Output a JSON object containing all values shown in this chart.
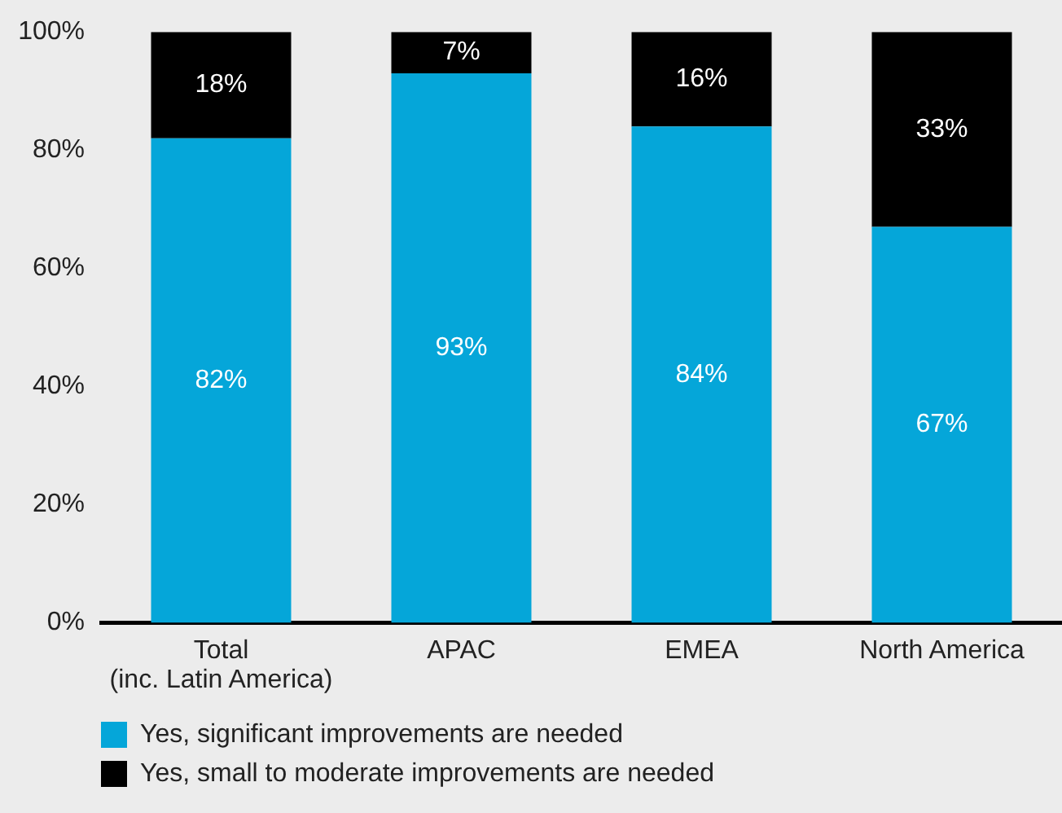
{
  "chart_data": {
    "type": "bar",
    "stacked": true,
    "categories": [
      "Total (inc. Latin America)",
      "APAC",
      "EMEA",
      "North America"
    ],
    "series": [
      {
        "name": "Yes, significant improvements are needed",
        "color": "#05a6d9",
        "values": [
          82,
          93,
          84,
          67
        ],
        "value_labels": [
          "82%",
          "93%",
          "84%",
          "67%"
        ]
      },
      {
        "name": "Yes, small to moderate improvements are needed",
        "color": "#000000",
        "values": [
          18,
          7,
          16,
          33
        ],
        "value_labels": [
          "18%",
          "7%",
          "16%",
          "33%"
        ]
      }
    ],
    "ylim": [
      0,
      100
    ],
    "yticks": [
      {
        "value": 0,
        "label": "0%"
      },
      {
        "value": 20,
        "label": "20%"
      },
      {
        "value": 40,
        "label": "40%"
      },
      {
        "value": 60,
        "label": "60%"
      },
      {
        "value": 80,
        "label": "80%"
      },
      {
        "value": 100,
        "label": "100%"
      }
    ],
    "legend": "bottom left"
  }
}
